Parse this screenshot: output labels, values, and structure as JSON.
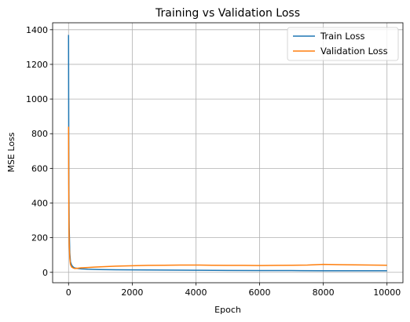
{
  "chart_data": {
    "type": "line",
    "title": "Training vs Validation Loss",
    "xlabel": "Epoch",
    "ylabel": "MSE Loss",
    "xlim": [
      -500,
      10500
    ],
    "ylim": [
      -60,
      1440
    ],
    "xticks": [
      0,
      2000,
      4000,
      6000,
      8000,
      10000
    ],
    "xtick_labels": [
      "0",
      "2000",
      "4000",
      "6000",
      "8000",
      "10000"
    ],
    "yticks": [
      0,
      200,
      400,
      600,
      800,
      1000,
      1200,
      1400
    ],
    "ytick_labels": [
      "0",
      "200",
      "400",
      "600",
      "800",
      "1000",
      "1200",
      "1400"
    ],
    "grid": true,
    "legend_position": "top-right",
    "series": [
      {
        "name": "Train Loss",
        "color": "#1f77b4",
        "x": [
          0,
          5,
          10,
          20,
          40,
          60,
          100,
          150,
          200,
          300,
          400,
          600,
          800,
          1000,
          1500,
          2000,
          3000,
          4000,
          5000,
          6000,
          7000,
          8000,
          9000,
          10000
        ],
        "y": [
          1370,
          900,
          500,
          260,
          110,
          60,
          40,
          30,
          25,
          22,
          20,
          18,
          17,
          16,
          15,
          14,
          13,
          12,
          11,
          10,
          10,
          9,
          9,
          9
        ]
      },
      {
        "name": "Validation Loss",
        "color": "#ff7f0e",
        "x": [
          0,
          5,
          10,
          20,
          40,
          60,
          100,
          150,
          200,
          300,
          400,
          600,
          800,
          1000,
          1500,
          2000,
          2500,
          3000,
          3500,
          4000,
          4500,
          5000,
          5500,
          6000,
          6500,
          7000,
          7500,
          8000,
          8500,
          9000,
          9500,
          10000
        ],
        "y": [
          840,
          560,
          330,
          170,
          80,
          45,
          30,
          25,
          22,
          24,
          26,
          28,
          30,
          32,
          36,
          38,
          40,
          41,
          42,
          42,
          41,
          40,
          40,
          39,
          40,
          41,
          42,
          46,
          44,
          43,
          42,
          41
        ]
      }
    ]
  }
}
